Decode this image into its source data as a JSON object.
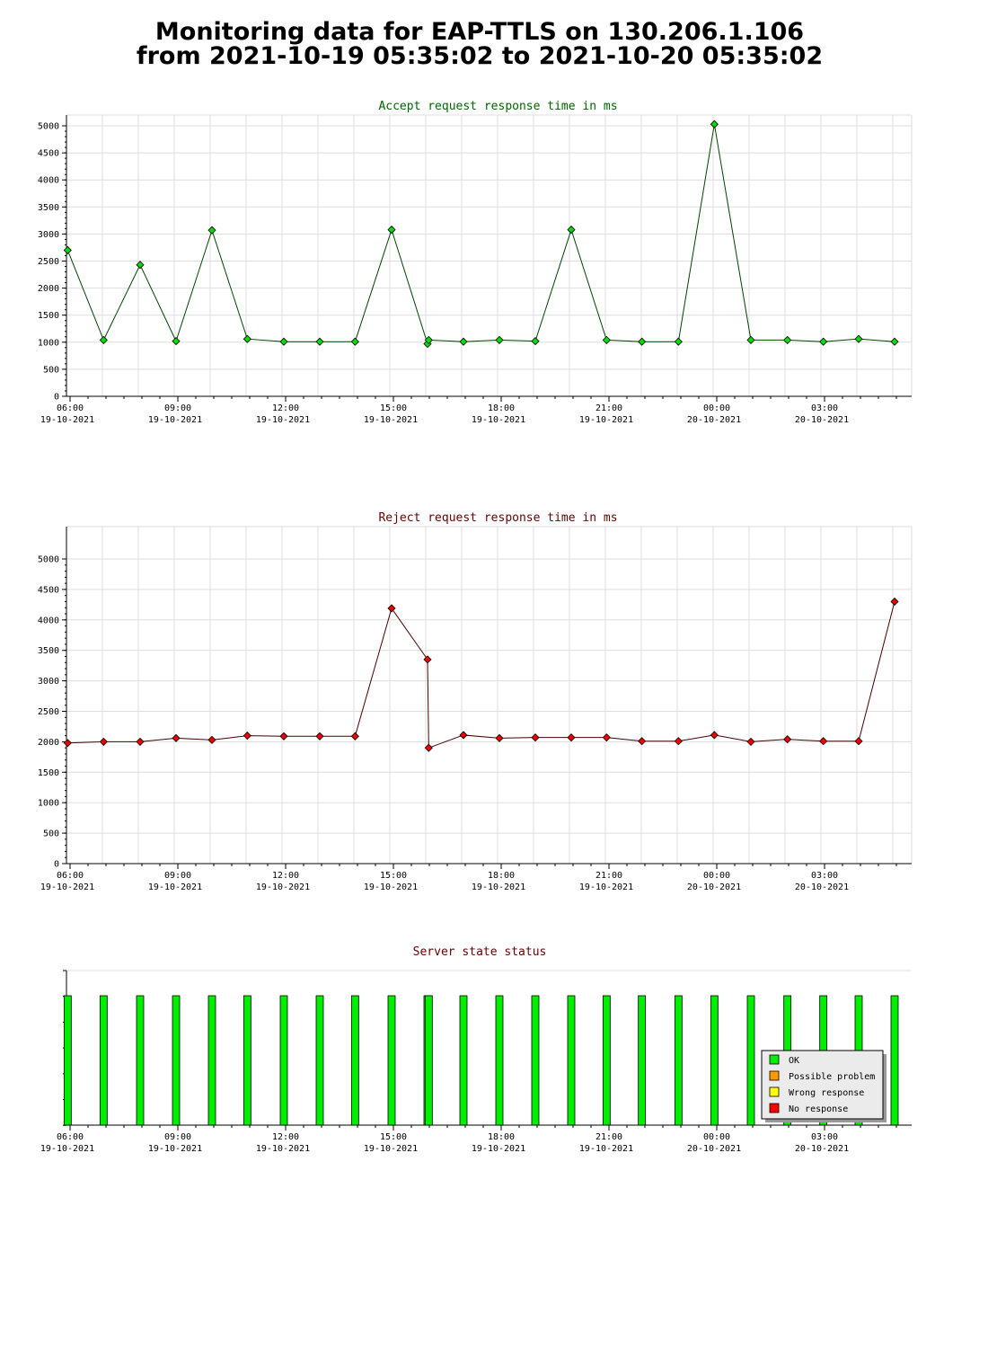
{
  "page": {
    "title_line1": "Monitoring data for EAP-TTLS on 130.206.1.106",
    "title_line2": "from 2021-10-19 05:35:02 to 2021-10-20 05:35:02"
  },
  "colors": {
    "accept_line": "#004400",
    "accept_marker": "#00dd00",
    "accept_title": "#006600",
    "reject_line": "#440000",
    "reject_marker": "#ee0000",
    "reject_title": "#660000",
    "ok": "#00ee00",
    "possible_problem": "#ff9900",
    "wrong_response": "#ffff00",
    "no_response": "#ff0000",
    "grid": "#dddddd"
  },
  "x_axis": {
    "ticks": [
      {
        "time": "06:00",
        "date": "19-10-2021"
      },
      {
        "time": "09:00",
        "date": "19-10-2021"
      },
      {
        "time": "12:00",
        "date": "19-10-2021"
      },
      {
        "time": "15:00",
        "date": "19-10-2021"
      },
      {
        "time": "18:00",
        "date": "19-10-2021"
      },
      {
        "time": "21:00",
        "date": "19-10-2021"
      },
      {
        "time": "00:00",
        "date": "20-10-2021"
      },
      {
        "time": "03:00",
        "date": "20-10-2021"
      }
    ]
  },
  "chart_data": [
    {
      "type": "line",
      "title": "Accept request response time in ms",
      "ylim": [
        0,
        5000
      ],
      "yticks": [
        0,
        500,
        1000,
        1500,
        2000,
        2500,
        3000,
        3500,
        4000,
        4500,
        5000
      ],
      "grid": true,
      "series": [
        {
          "x": [
            "2021-10-19 05:50",
            "2021-10-19 06:50",
            "2021-10-19 07:51",
            "2021-10-19 08:51",
            "2021-10-19 09:51",
            "2021-10-19 10:50",
            "2021-10-19 11:51",
            "2021-10-19 12:51",
            "2021-10-19 13:50",
            "2021-10-19 14:51",
            "2021-10-19 15:51",
            "2021-10-19 15:53",
            "2021-10-19 16:51",
            "2021-10-19 17:51",
            "2021-10-19 18:51",
            "2021-10-19 19:51",
            "2021-10-19 20:50",
            "2021-10-19 21:49",
            "2021-10-19 22:50",
            "2021-10-19 23:50",
            "2021-10-20 00:51",
            "2021-10-20 01:52",
            "2021-10-20 02:52",
            "2021-10-20 03:51",
            "2021-10-20 04:51"
          ],
          "values": [
            2700,
            1040,
            2430,
            1020,
            3070,
            1060,
            1010,
            1010,
            1010,
            3080,
            970,
            1040,
            1010,
            1040,
            1020,
            3080,
            1040,
            1010,
            1010,
            5030,
            1040,
            1040,
            1010,
            1060,
            1010
          ]
        }
      ]
    },
    {
      "type": "line",
      "title": "Reject request response time in ms",
      "ylim": [
        0,
        5000
      ],
      "yticks": [
        0,
        500,
        1000,
        1500,
        2000,
        2500,
        3000,
        3500,
        4000,
        4500,
        5000
      ],
      "grid": true,
      "series": [
        {
          "x": [
            "2021-10-19 05:50",
            "2021-10-19 06:50",
            "2021-10-19 07:51",
            "2021-10-19 08:51",
            "2021-10-19 09:51",
            "2021-10-19 10:50",
            "2021-10-19 11:51",
            "2021-10-19 12:51",
            "2021-10-19 13:50",
            "2021-10-19 14:51",
            "2021-10-19 15:51",
            "2021-10-19 15:53",
            "2021-10-19 16:51",
            "2021-10-19 17:51",
            "2021-10-19 18:51",
            "2021-10-19 19:51",
            "2021-10-19 20:50",
            "2021-10-19 21:49",
            "2021-10-19 22:50",
            "2021-10-19 23:50",
            "2021-10-20 00:51",
            "2021-10-20 01:52",
            "2021-10-20 02:52",
            "2021-10-20 03:51",
            "2021-10-20 04:51"
          ],
          "values": [
            1980,
            2000,
            2000,
            2060,
            2030,
            2100,
            2090,
            2090,
            2090,
            4190,
            3350,
            1900,
            2110,
            2060,
            2070,
            2070,
            2070,
            2010,
            2010,
            2110,
            2000,
            2040,
            2010,
            2010,
            4300
          ]
        }
      ]
    },
    {
      "type": "bar",
      "title": "Server state status",
      "grid": false,
      "legend_position": "bottom-right",
      "legend": [
        "OK",
        "Possible problem",
        "Wrong response",
        "No response"
      ],
      "series": [
        {
          "name": "OK",
          "x": [
            "2021-10-19 05:50",
            "2021-10-19 06:50",
            "2021-10-19 07:51",
            "2021-10-19 08:51",
            "2021-10-19 09:51",
            "2021-10-19 10:50",
            "2021-10-19 11:51",
            "2021-10-19 12:51",
            "2021-10-19 13:50",
            "2021-10-19 14:51",
            "2021-10-19 15:51",
            "2021-10-19 15:53",
            "2021-10-19 16:51",
            "2021-10-19 17:51",
            "2021-10-19 18:51",
            "2021-10-19 19:51",
            "2021-10-19 20:50",
            "2021-10-19 21:49",
            "2021-10-19 22:50",
            "2021-10-19 23:50",
            "2021-10-20 00:51",
            "2021-10-20 01:52",
            "2021-10-20 02:52",
            "2021-10-20 03:51",
            "2021-10-20 04:51"
          ],
          "values": [
            1,
            1,
            1,
            1,
            1,
            1,
            1,
            1,
            1,
            1,
            1,
            1,
            1,
            1,
            1,
            1,
            1,
            1,
            1,
            1,
            1,
            1,
            1,
            1,
            1
          ]
        }
      ]
    }
  ]
}
